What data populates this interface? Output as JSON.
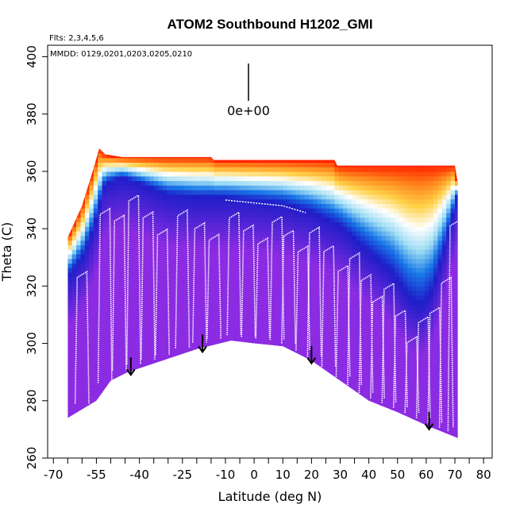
{
  "chart_data": {
    "type": "heatmap",
    "title": "ATOM2 Southbound H1202_GMI",
    "xlabel": "Latitude (deg N)",
    "ylabel": "Theta (C)",
    "flights_note": "Flts: 2,3,4,5,6",
    "dates_note": "MMDD: 0129,0201,0203,0205,0210",
    "colorbar_label": "0e+00",
    "xlim": [
      -72,
      83
    ],
    "ylim": [
      260,
      404
    ],
    "x_tick_labels": [
      "-70",
      "-55",
      "-40",
      "-25",
      "-10",
      "0",
      "10",
      "20",
      "30",
      "40",
      "50",
      "60",
      "70",
      "80"
    ],
    "x_tick_values": [
      -70,
      -55,
      -40,
      -25,
      -10,
      0,
      10,
      20,
      30,
      40,
      50,
      60,
      70,
      80
    ],
    "x_minor_ticks": [
      -65,
      -60,
      -50,
      -45,
      -35,
      -30,
      -20,
      -15,
      -5,
      5,
      15,
      25,
      35,
      45,
      55,
      65,
      75
    ],
    "y_ticks": [
      260,
      280,
      300,
      320,
      340,
      360,
      380,
      400
    ],
    "ground_profile": [
      {
        "lat": -65,
        "theta": 274
      },
      {
        "lat": -55,
        "theta": 280
      },
      {
        "lat": -50,
        "theta": 287
      },
      {
        "lat": -44,
        "theta": 290
      },
      {
        "lat": -35,
        "theta": 293
      },
      {
        "lat": -20,
        "theta": 298
      },
      {
        "lat": -8,
        "theta": 301
      },
      {
        "lat": 0,
        "theta": 300
      },
      {
        "lat": 10,
        "theta": 299
      },
      {
        "lat": 20,
        "theta": 294
      },
      {
        "lat": 30,
        "theta": 287
      },
      {
        "lat": 40,
        "theta": 280
      },
      {
        "lat": 50,
        "theta": 276
      },
      {
        "lat": 61,
        "theta": 271
      },
      {
        "lat": 71,
        "theta": 267
      }
    ],
    "top_profile": [
      {
        "lat": -65,
        "theta": 337
      },
      {
        "lat": -60,
        "theta": 348
      },
      {
        "lat": -56,
        "theta": 361
      },
      {
        "lat": -54,
        "theta": 368
      },
      {
        "lat": -52,
        "theta": 366
      },
      {
        "lat": -46,
        "theta": 365
      },
      {
        "lat": -15,
        "theta": 365
      },
      {
        "lat": -14,
        "theta": 364
      },
      {
        "lat": 28,
        "theta": 364
      },
      {
        "lat": 29,
        "theta": 362
      },
      {
        "lat": 70,
        "theta": 362
      },
      {
        "lat": 71,
        "theta": 356
      }
    ],
    "arrows": [
      {
        "lat": -43,
        "theta": 289
      },
      {
        "lat": -18,
        "theta": 297
      },
      {
        "lat": 20,
        "theta": 293
      },
      {
        "lat": 61,
        "theta": 270
      }
    ],
    "tropopause_lat": [
      -66,
      -60,
      -56,
      -52,
      -46,
      -40,
      -30,
      -20,
      -10,
      0,
      10,
      20,
      30,
      40,
      48,
      54,
      58,
      62,
      66,
      71
    ],
    "tropopause_theta": [
      322,
      330,
      340,
      356,
      358,
      356,
      352,
      351,
      351,
      350,
      349,
      346,
      341,
      332,
      325,
      316,
      313,
      318,
      332,
      352
    ],
    "color_scale": [
      "#8b2be2",
      "#1e1ec8",
      "#1978e8",
      "#9cdcf4",
      "#ffffff",
      "#ffd24a",
      "#ff8a1e",
      "#ff2400"
    ]
  }
}
